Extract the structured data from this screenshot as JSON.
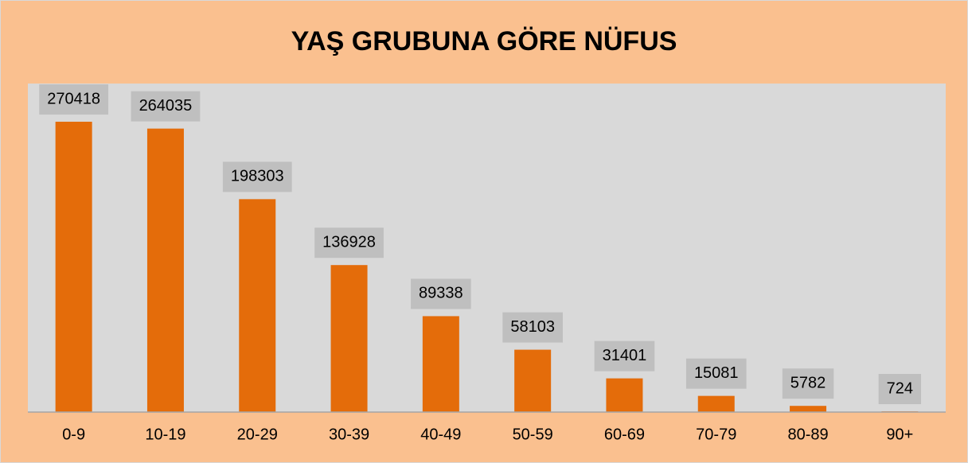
{
  "chart_data": {
    "type": "bar",
    "title": "YAŞ GRUBUNA GÖRE NÜFUS",
    "categories": [
      "0-9",
      "10-19",
      "20-29",
      "30-39",
      "40-49",
      "50-59",
      "60-69",
      "70-79",
      "80-89",
      "90+"
    ],
    "values": [
      270418,
      264035,
      198303,
      136928,
      89338,
      58103,
      31401,
      15081,
      5782,
      724
    ],
    "color": "#e46c0a",
    "ylim": [
      0,
      306000
    ]
  }
}
